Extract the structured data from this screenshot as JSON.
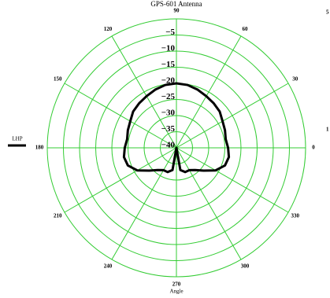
{
  "chart_data": {
    "type": "polar",
    "title": "GPS-601 Antenna",
    "x_label": "Angle",
    "theta": [
      0,
      10,
      20,
      30,
      40,
      50,
      60,
      70,
      80,
      90,
      100,
      110,
      120,
      130,
      140,
      150,
      160,
      170,
      180,
      190,
      200,
      210,
      220,
      230,
      240,
      250,
      260,
      270,
      280,
      290,
      300,
      310,
      320,
      330,
      340,
      350
    ],
    "thetaticks": [
      0,
      30,
      60,
      90,
      120,
      150,
      180,
      210,
      240,
      270,
      300,
      330
    ],
    "rlim": [
      -40,
      0
    ],
    "rticks": [
      {
        "value": -40,
        "label": "−40"
      },
      {
        "value": -35,
        "label": "−35"
      },
      {
        "value": -30,
        "label": "−30"
      },
      {
        "value": -25,
        "label": "−25"
      },
      {
        "value": -20,
        "label": "−20"
      },
      {
        "value": -15,
        "label": "−15"
      },
      {
        "value": -10,
        "label": "−10"
      },
      {
        "value": -5,
        "label": "−5"
      }
    ],
    "grid": true,
    "grid_color": "#33cc33",
    "series": [
      {
        "name": "LHP",
        "color": "#000000",
        "values": [
          -24,
          -24.5,
          -24,
          -23.5,
          -22.5,
          -22,
          -21.5,
          -20.8,
          -20.2,
          -20,
          -20.2,
          -20.8,
          -21.5,
          -22,
          -22.5,
          -23.5,
          -24,
          -24.5,
          -24,
          -23.5,
          -24,
          -26,
          -29,
          -31,
          -32,
          -32,
          -33,
          -40,
          -33,
          -32,
          -32,
          -31,
          -29,
          -26,
          -24,
          -23.5
        ]
      }
    ],
    "legend": "left",
    "edge_labels": [
      "5",
      "1"
    ]
  }
}
